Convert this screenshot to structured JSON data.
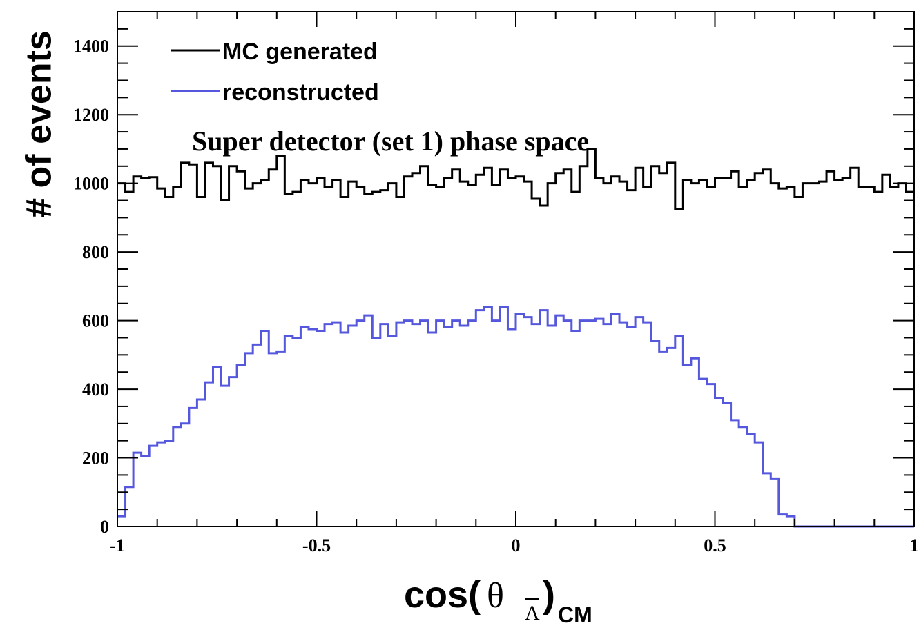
{
  "chart_data": {
    "type": "histogram",
    "title": "",
    "annotation": "Super detector (set 1) phase space",
    "xlabel": {
      "prefix": "cos(",
      "symbol": "θ",
      "subscript": "Λ",
      "suffix": ")",
      "suffix_subscript": "CM"
    },
    "ylabel": "# of events",
    "xlim": [
      -1,
      1
    ],
    "ylim": [
      0,
      1500
    ],
    "x_tick_labels": [
      "-1",
      "-0.5",
      "0",
      "0.5",
      "1"
    ],
    "x_ticks": [
      -1,
      -0.5,
      0,
      0.5,
      1
    ],
    "y_tick_labels": [
      "0",
      "200",
      "400",
      "600",
      "800",
      "1000",
      "1200",
      "1400"
    ],
    "y_ticks": [
      0,
      200,
      400,
      600,
      800,
      1000,
      1200,
      1400
    ],
    "legend_position": "top-left",
    "bins": 100,
    "bin_range": [
      -1,
      1
    ],
    "series": [
      {
        "name": "MC generated",
        "color": "#000000",
        "values": [
          1000,
          975,
          1020,
          1015,
          1018,
          985,
          960,
          990,
          1060,
          1055,
          960,
          1060,
          1050,
          950,
          1050,
          1035,
          985,
          1000,
          1010,
          1040,
          1080,
          970,
          975,
          1010,
          1000,
          1015,
          990,
          1010,
          960,
          1005,
          990,
          970,
          975,
          980,
          1000,
          960,
          1020,
          1030,
          1050,
          995,
          990,
          1015,
          1040,
          1005,
          995,
          1025,
          1045,
          995,
          1040,
          1015,
          1020,
          1005,
          955,
          935,
          1000,
          1030,
          1040,
          975,
          1050,
          1100,
          1015,
          1000,
          1020,
          1005,
          980,
          1045,
          990,
          1050,
          1030,
          1060,
          925,
          1010,
          1000,
          1010,
          990,
          1015,
          1015,
          1035,
          990,
          1010,
          1030,
          1040,
          1000,
          985,
          990,
          960,
          1000,
          1000,
          1005,
          1035,
          1010,
          1015,
          1045,
          990,
          990,
          975,
          1025,
          990,
          1000,
          975
        ]
      },
      {
        "name": "reconstructed",
        "color": "#5558dd",
        "values": [
          30,
          115,
          215,
          205,
          235,
          245,
          250,
          290,
          300,
          345,
          370,
          420,
          465,
          410,
          435,
          470,
          505,
          530,
          570,
          505,
          510,
          555,
          550,
          580,
          575,
          570,
          590,
          595,
          565,
          585,
          600,
          615,
          550,
          590,
          555,
          595,
          600,
          590,
          600,
          565,
          600,
          580,
          600,
          585,
          600,
          630,
          640,
          600,
          640,
          575,
          620,
          610,
          590,
          630,
          585,
          615,
          600,
          570,
          600,
          600,
          605,
          590,
          620,
          595,
          580,
          610,
          595,
          540,
          510,
          520,
          555,
          470,
          490,
          430,
          415,
          375,
          360,
          310,
          290,
          270,
          245,
          155,
          140,
          35,
          30,
          0,
          0,
          0,
          0,
          0,
          0,
          0,
          0,
          0,
          0,
          0,
          0,
          0,
          0,
          0
        ]
      }
    ]
  }
}
